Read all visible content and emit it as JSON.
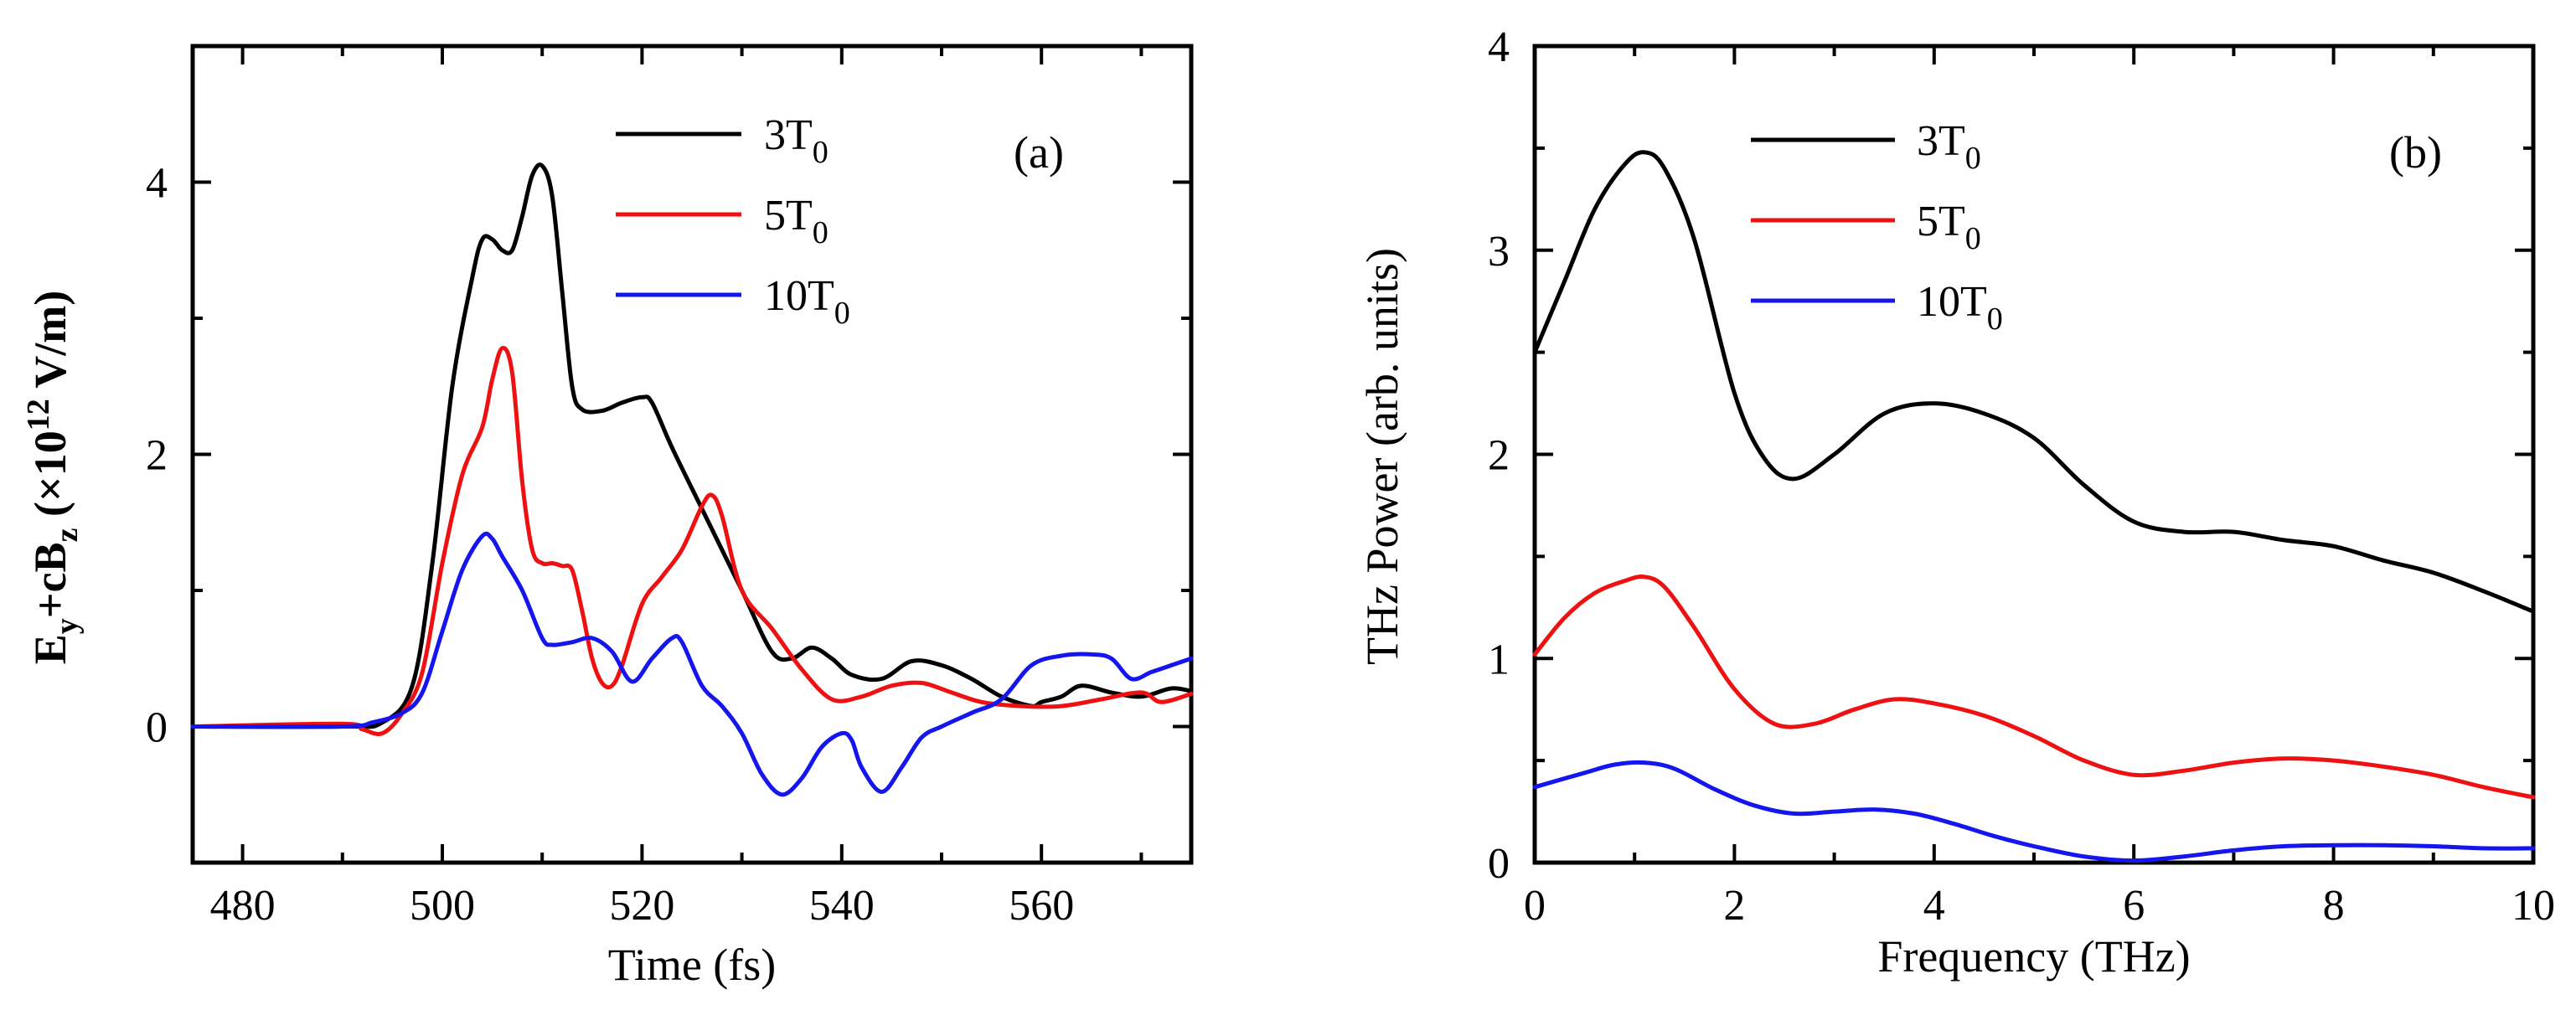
{
  "colors": {
    "3T0": "#000000",
    "5T0": "#ee1111",
    "10T0": "#1515ee"
  },
  "chart_data": [
    {
      "type": "line",
      "panel_label": "(a)",
      "xlabel": "Time (fs)",
      "ylabel": {
        "prefix": "E",
        "sub1": "y",
        "mid": "+cB",
        "sub2": "z",
        "paren_open": " (×10",
        "sup": "12",
        "paren_close": " V/m)"
      },
      "xlim": [
        475,
        575
      ],
      "ylim": [
        -1,
        5
      ],
      "xticks": [
        480,
        500,
        520,
        540,
        560
      ],
      "xtick_labels": [
        "480",
        "500",
        "520",
        "540",
        "560"
      ],
      "xminor": [
        490,
        510,
        530,
        550,
        570
      ],
      "yticks": [
        0,
        2,
        4
      ],
      "ytick_labels": [
        "0",
        "2",
        "4"
      ],
      "yminor": [
        -1,
        1,
        3,
        5
      ],
      "legend_position": "top-center",
      "series": [
        {
          "name": "3T",
          "sub": "0",
          "color_key": "3T0",
          "x": [
            475,
            490,
            494,
            497,
            499,
            501,
            503,
            504,
            505,
            506,
            507,
            508,
            509,
            510,
            511,
            512,
            513,
            514,
            516,
            518,
            520,
            521,
            523,
            526,
            530,
            533,
            535,
            537,
            539,
            541,
            544,
            547,
            550,
            553,
            556,
            559,
            560,
            562,
            564,
            567,
            570,
            573,
            575
          ],
          "y": [
            0,
            0,
            0.03,
            0.3,
            1.2,
            2.5,
            3.3,
            3.58,
            3.58,
            3.5,
            3.5,
            3.75,
            4.05,
            4.12,
            3.9,
            3.2,
            2.5,
            2.33,
            2.32,
            2.38,
            2.42,
            2.38,
            2.05,
            1.6,
            1.0,
            0.55,
            0.5,
            0.58,
            0.5,
            0.38,
            0.35,
            0.48,
            0.45,
            0.35,
            0.22,
            0.15,
            0.18,
            0.22,
            0.3,
            0.25,
            0.22,
            0.28,
            0.26
          ]
        },
        {
          "name": "5T",
          "sub": "0",
          "color_key": "5T0",
          "x": [
            475,
            490,
            492,
            494,
            496,
            498,
            500,
            502,
            504,
            505,
            506,
            507,
            508,
            509,
            510,
            511,
            512,
            513,
            514,
            515,
            516,
            517,
            518,
            520,
            522,
            524,
            526,
            527,
            528,
            530,
            533,
            536,
            539,
            542,
            545,
            548,
            551,
            554,
            558,
            562,
            566,
            570,
            572,
            575
          ],
          "y": [
            0,
            0.02,
            -0.02,
            -0.05,
            0.1,
            0.4,
            1.2,
            1.85,
            2.2,
            2.55,
            2.78,
            2.6,
            1.8,
            1.3,
            1.2,
            1.2,
            1.18,
            1.15,
            0.85,
            0.5,
            0.32,
            0.3,
            0.45,
            0.9,
            1.1,
            1.3,
            1.62,
            1.7,
            1.55,
            1.0,
            0.72,
            0.42,
            0.2,
            0.22,
            0.3,
            0.32,
            0.25,
            0.18,
            0.15,
            0.15,
            0.2,
            0.25,
            0.18,
            0.24
          ]
        },
        {
          "name": "10T",
          "sub": "0",
          "color_key": "10T0",
          "x": [
            475,
            490,
            493,
            496,
            498,
            500,
            502,
            504,
            505,
            506,
            508,
            510,
            511,
            513,
            515,
            517,
            519,
            521,
            523,
            524,
            526,
            528,
            530,
            532,
            534,
            536,
            538,
            540,
            541,
            542,
            544,
            546,
            548,
            550,
            553,
            556,
            559,
            562,
            565,
            567,
            569,
            571,
            573,
            575
          ],
          "y": [
            0,
            0,
            0.03,
            0.1,
            0.25,
            0.7,
            1.15,
            1.4,
            1.38,
            1.25,
            1.0,
            0.65,
            0.6,
            0.62,
            0.65,
            0.55,
            0.33,
            0.5,
            0.65,
            0.62,
            0.3,
            0.15,
            -0.05,
            -0.35,
            -0.5,
            -0.38,
            -0.15,
            -0.05,
            -0.1,
            -0.3,
            -0.48,
            -0.3,
            -0.08,
            0.0,
            0.1,
            0.2,
            0.45,
            0.52,
            0.53,
            0.5,
            0.35,
            0.4,
            0.45,
            0.5
          ]
        }
      ]
    },
    {
      "type": "line",
      "panel_label": "(b)",
      "xlabel": "Frequency (THz)",
      "ylabel": "THz Power (arb. units)",
      "xlim": [
        0,
        10
      ],
      "ylim": [
        0,
        4
      ],
      "xticks": [
        0,
        2,
        4,
        6,
        8,
        10
      ],
      "xtick_labels": [
        "0",
        "2",
        "4",
        "6",
        "8",
        "10"
      ],
      "xminor": [
        1,
        3,
        5,
        7,
        9
      ],
      "yticks": [
        0,
        1,
        2,
        3,
        4
      ],
      "ytick_labels": [
        "0",
        "1",
        "2",
        "3",
        "4"
      ],
      "yminor": [
        0.5,
        1.5,
        2.5,
        3.5
      ],
      "legend_position": "top-left",
      "series": [
        {
          "name": "3T",
          "sub": "0",
          "color_key": "3T0",
          "x": [
            0,
            0.3,
            0.6,
            0.9,
            1.1,
            1.3,
            1.6,
            2.0,
            2.3,
            2.6,
            3.0,
            3.5,
            4.0,
            4.5,
            5.0,
            5.5,
            6.0,
            6.5,
            7.0,
            7.5,
            8.0,
            8.5,
            9.0,
            9.5,
            10.0
          ],
          "y": [
            2.5,
            2.85,
            3.2,
            3.42,
            3.48,
            3.4,
            3.05,
            2.3,
            1.98,
            1.88,
            2.0,
            2.2,
            2.25,
            2.2,
            2.08,
            1.85,
            1.67,
            1.62,
            1.62,
            1.58,
            1.55,
            1.48,
            1.42,
            1.33,
            1.23
          ]
        },
        {
          "name": "5T",
          "sub": "0",
          "color_key": "5T0",
          "x": [
            0,
            0.3,
            0.6,
            0.9,
            1.1,
            1.3,
            1.6,
            2.0,
            2.4,
            2.8,
            3.2,
            3.6,
            4.0,
            4.5,
            5.0,
            5.5,
            6.0,
            6.5,
            7.0,
            7.5,
            8.0,
            8.5,
            9.0,
            9.5,
            10.0
          ],
          "y": [
            1.02,
            1.2,
            1.32,
            1.38,
            1.4,
            1.35,
            1.15,
            0.85,
            0.68,
            0.68,
            0.75,
            0.8,
            0.78,
            0.72,
            0.62,
            0.5,
            0.43,
            0.45,
            0.49,
            0.51,
            0.5,
            0.47,
            0.43,
            0.37,
            0.32
          ]
        },
        {
          "name": "10T",
          "sub": "0",
          "color_key": "10T0",
          "x": [
            0,
            0.5,
            0.8,
            1.1,
            1.4,
            1.8,
            2.2,
            2.6,
            3.0,
            3.4,
            3.8,
            4.2,
            4.6,
            5.0,
            5.5,
            6.0,
            6.5,
            7.0,
            7.5,
            8.0,
            8.5,
            9.0,
            9.5,
            10.0
          ],
          "y": [
            0.37,
            0.44,
            0.48,
            0.49,
            0.46,
            0.36,
            0.28,
            0.24,
            0.25,
            0.26,
            0.24,
            0.19,
            0.13,
            0.08,
            0.03,
            0.01,
            0.03,
            0.06,
            0.08,
            0.085,
            0.085,
            0.08,
            0.07,
            0.07
          ]
        }
      ]
    }
  ]
}
